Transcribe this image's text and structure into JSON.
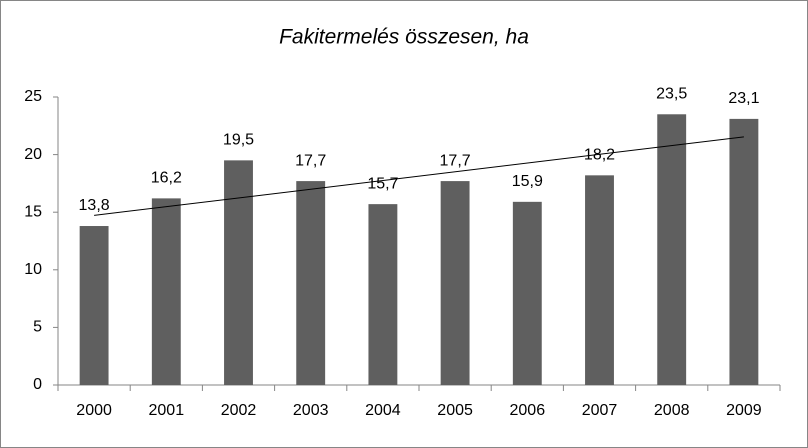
{
  "chart_data": {
    "type": "bar",
    "title": "Fakitermelés összesen, ha",
    "categories": [
      "2000",
      "2001",
      "2002",
      "2003",
      "2004",
      "2005",
      "2006",
      "2007",
      "2008",
      "2009"
    ],
    "values": [
      13.8,
      16.2,
      19.5,
      17.7,
      15.7,
      17.7,
      15.9,
      18.2,
      23.5,
      23.1
    ],
    "value_labels": [
      "13,8",
      "16,2",
      "19,5",
      "17,7",
      "15,7",
      "17,7",
      "15,9",
      "18,2",
      "23,5",
      "23,1"
    ],
    "color": "#5f5f5f",
    "ylim": [
      0,
      25
    ],
    "yticks": [
      0,
      5,
      10,
      15,
      20,
      25
    ],
    "grid": false,
    "trendline": true
  }
}
